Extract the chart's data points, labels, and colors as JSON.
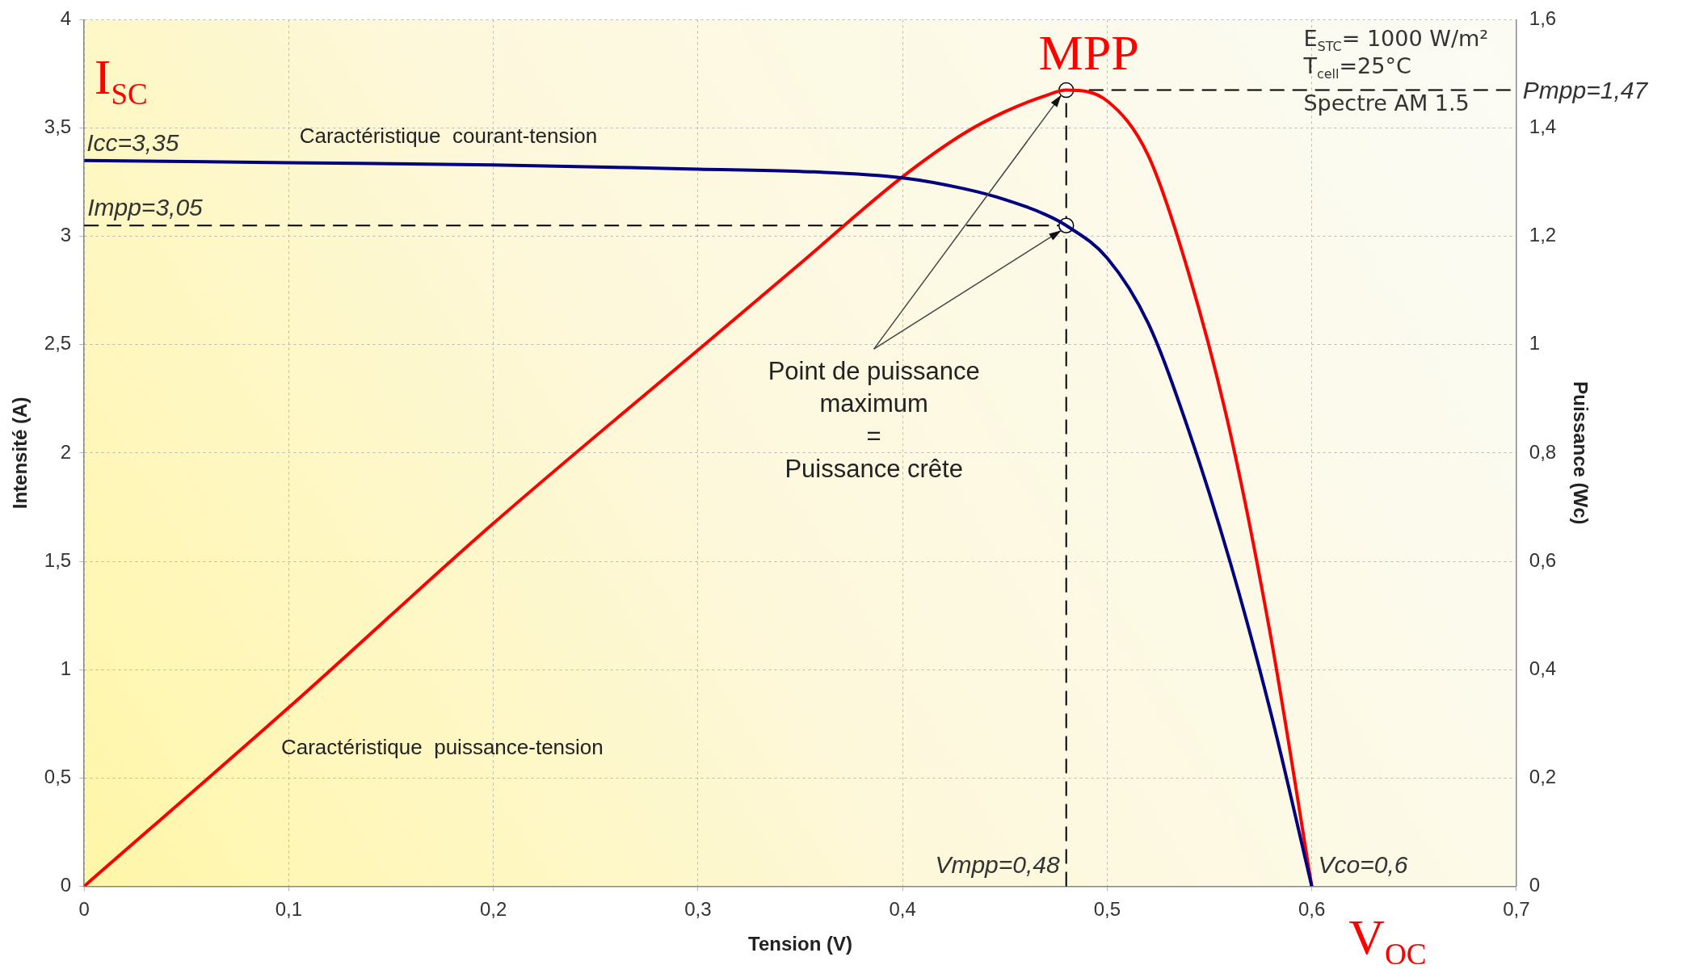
{
  "chart_data": {
    "type": "line",
    "xlabel": "Tension (V)",
    "ylabel": "Intensité (A)",
    "y2label": "Puissance (Wc)",
    "xlim": [
      0,
      0.7
    ],
    "xticks": [
      0,
      {
        "value": 0.1,
        "label": "0,1"
      },
      {
        "value": 0.2,
        "label": "0,2"
      },
      {
        "value": 0.3,
        "label": "0,3"
      },
      {
        "value": 0.4,
        "label": "0,4"
      },
      {
        "value": 0.5,
        "label": "0,5"
      },
      {
        "value": 0.6,
        "label": "0,6"
      },
      {
        "value": 0.7,
        "label": "0,7"
      }
    ],
    "ylim": [
      0,
      4
    ],
    "yticks": [
      0,
      {
        "value": 0.5,
        "label": "0,5"
      },
      1,
      {
        "value": 1.5,
        "label": "1,5"
      },
      2,
      {
        "value": 2.5,
        "label": "2,5"
      },
      3,
      {
        "value": 3.5,
        "label": "3,5"
      },
      4
    ],
    "y2lim": [
      0,
      1.6
    ],
    "y2ticks": [
      0,
      {
        "value": 0.2,
        "label": "0,2"
      },
      {
        "value": 0.4,
        "label": "0,4"
      },
      {
        "value": 0.6,
        "label": "0,6"
      },
      {
        "value": 0.8,
        "label": "0,8"
      },
      1,
      {
        "value": 1.2,
        "label": "1,2"
      },
      {
        "value": 1.4,
        "label": "1,4"
      },
      {
        "value": 1.6,
        "label": "1,6"
      }
    ],
    "grid": true,
    "legend": false,
    "marker": "none",
    "line_style": "solid",
    "series": [
      {
        "type": "line",
        "color": "#000080",
        "x": [
          0,
          0.1,
          0.2,
          0.3,
          0.35,
          0.4,
          0.43,
          0.45,
          0.47,
          0.48,
          0.5,
          0.52,
          0.54,
          0.56,
          0.58,
          0.6
        ],
        "values": [
          3.35,
          3.34,
          3.33,
          3.31,
          3.3,
          3.27,
          3.22,
          3.17,
          3.1,
          3.05,
          2.9,
          2.6,
          2.1,
          1.5,
          0.8,
          0
        ]
      },
      {
        "type": "line",
        "axis": "y2",
        "color": "#ff0000",
        "x": [
          0,
          0.1,
          0.2,
          0.3,
          0.35,
          0.4,
          0.43,
          0.45,
          0.47,
          0.48,
          0.5,
          0.52,
          0.54,
          0.56,
          0.58,
          0.6
        ],
        "values": [
          0,
          0.33,
          0.67,
          0.99,
          1.15,
          1.31,
          1.39,
          1.43,
          1.46,
          1.47,
          1.45,
          1.35,
          1.13,
          0.84,
          0.46,
          0
        ]
      },
      {
        "type": "scatter",
        "color": "#ffffff",
        "marker": "circle",
        "x": [
          0.48
        ],
        "values": [
          3.05
        ]
      },
      {
        "type": "scatter",
        "axis": "y2",
        "color": "#ffffff",
        "marker": "circle",
        "x": [
          0.48
        ],
        "values": [
          1.47
        ]
      }
    ],
    "ref_lines": [
      {
        "axis": "y",
        "value": 3.05,
        "label": "Impp=3,05",
        "color": "#000000",
        "line_style": "dashed"
      },
      {
        "axis": "x",
        "value": 0.48,
        "label": "Vmpp=0,48",
        "color": "#000000",
        "line_style": "dashed"
      },
      {
        "axis": "y2",
        "value": 1.47,
        "label": "Pmpp=1,47",
        "color": "#000000",
        "line_style": "dashed"
      }
    ],
    "annotations": [
      "I$_{SC}$",
      "MPP",
      "V$_{OC}$",
      "Caractéristique  courant-tension",
      "Caractéristique  puissance-tension",
      {
        "text": "Icc=3,35",
        "x": 0,
        "y": 3.35
      },
      {
        "text": "Point de puissance\nmaximum\n=\nPuissance crête",
        "x": 0.48,
        "y": 3.05
      },
      "E$_{STC}$= 1000 W/m²",
      "T$_{cell}$=25°C",
      "Spectre AM 1.5",
      {
        "text": "Vco=0,6",
        "x": 0.6,
        "y": 0
      }
    ]
  }
}
